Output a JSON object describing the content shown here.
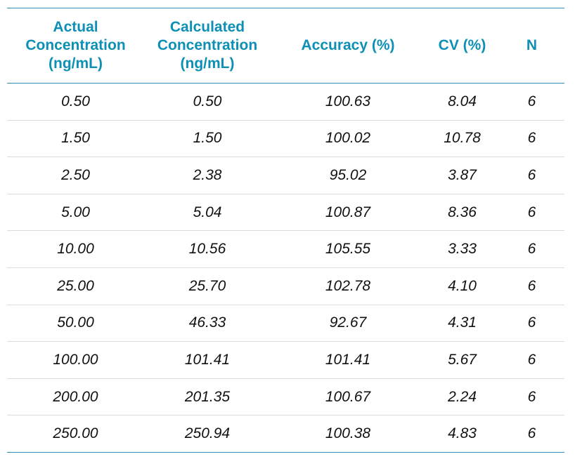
{
  "table": {
    "headers": [
      "Actual\nConcentration\n(ng/mL)",
      "Calculated\nConcentration\n(ng/mL)",
      "Accuracy (%)",
      "CV (%)",
      "N"
    ],
    "rows": [
      [
        "0.50",
        "0.50",
        "100.63",
        "8.04",
        "6"
      ],
      [
        "1.50",
        "1.50",
        "100.02",
        "10.78",
        "6"
      ],
      [
        "2.50",
        "2.38",
        "95.02",
        "3.87",
        "6"
      ],
      [
        "5.00",
        "5.04",
        "100.87",
        "8.36",
        "6"
      ],
      [
        "10.00",
        "10.56",
        "105.55",
        "3.33",
        "6"
      ],
      [
        "25.00",
        "25.70",
        "102.78",
        "4.10",
        "6"
      ],
      [
        "50.00",
        "46.33",
        "92.67",
        "4.31",
        "6"
      ],
      [
        "100.00",
        "101.41",
        "101.41",
        "5.67",
        "6"
      ],
      [
        "200.00",
        "201.35",
        "100.67",
        "2.24",
        "6"
      ],
      [
        "250.00",
        "250.94",
        "100.38",
        "4.83",
        "6"
      ]
    ]
  },
  "colors": {
    "header_text": "#0e8fb5",
    "rule": "#2a8fb0",
    "row_divider": "#dcdcdc"
  }
}
